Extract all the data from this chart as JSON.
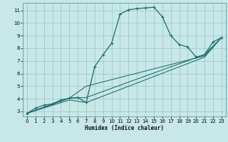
{
  "xlabel": "Humidex (Indice chaleur)",
  "bg_color": "#c8e8e8",
  "grid_color": "#a0c8c8",
  "line_color": "#1a6b6b",
  "xlim": [
    -0.5,
    23.5
  ],
  "ylim": [
    2.6,
    11.6
  ],
  "xticks": [
    0,
    1,
    2,
    3,
    4,
    5,
    6,
    7,
    8,
    9,
    10,
    11,
    12,
    13,
    14,
    15,
    16,
    17,
    18,
    19,
    20,
    21,
    22,
    23
  ],
  "yticks": [
    3,
    4,
    5,
    6,
    7,
    8,
    9,
    10,
    11
  ],
  "series": [
    [
      [
        0,
        2.85
      ],
      [
        1,
        3.25
      ],
      [
        2,
        3.5
      ],
      [
        3,
        3.6
      ],
      [
        4,
        3.9
      ],
      [
        5,
        4.05
      ],
      [
        6,
        4.1
      ],
      [
        7,
        3.7
      ],
      [
        8,
        6.55
      ],
      [
        9,
        7.5
      ],
      [
        10,
        8.4
      ],
      [
        11,
        10.7
      ],
      [
        12,
        11.05
      ],
      [
        13,
        11.15
      ],
      [
        14,
        11.2
      ],
      [
        15,
        11.25
      ],
      [
        16,
        10.5
      ],
      [
        17,
        9.0
      ],
      [
        18,
        8.3
      ],
      [
        19,
        8.1
      ],
      [
        20,
        7.3
      ],
      [
        21,
        7.5
      ],
      [
        22,
        8.5
      ],
      [
        23,
        8.85
      ]
    ],
    [
      [
        0,
        2.85
      ],
      [
        5,
        4.05
      ],
      [
        7,
        4.1
      ],
      [
        21,
        7.5
      ],
      [
        23,
        8.85
      ]
    ],
    [
      [
        0,
        2.85
      ],
      [
        5,
        3.9
      ],
      [
        7,
        3.7
      ],
      [
        21,
        7.3
      ],
      [
        23,
        8.85
      ]
    ],
    [
      [
        0,
        2.85
      ],
      [
        5,
        4.05
      ],
      [
        7,
        5.0
      ],
      [
        21,
        7.4
      ],
      [
        23,
        8.85
      ]
    ]
  ]
}
